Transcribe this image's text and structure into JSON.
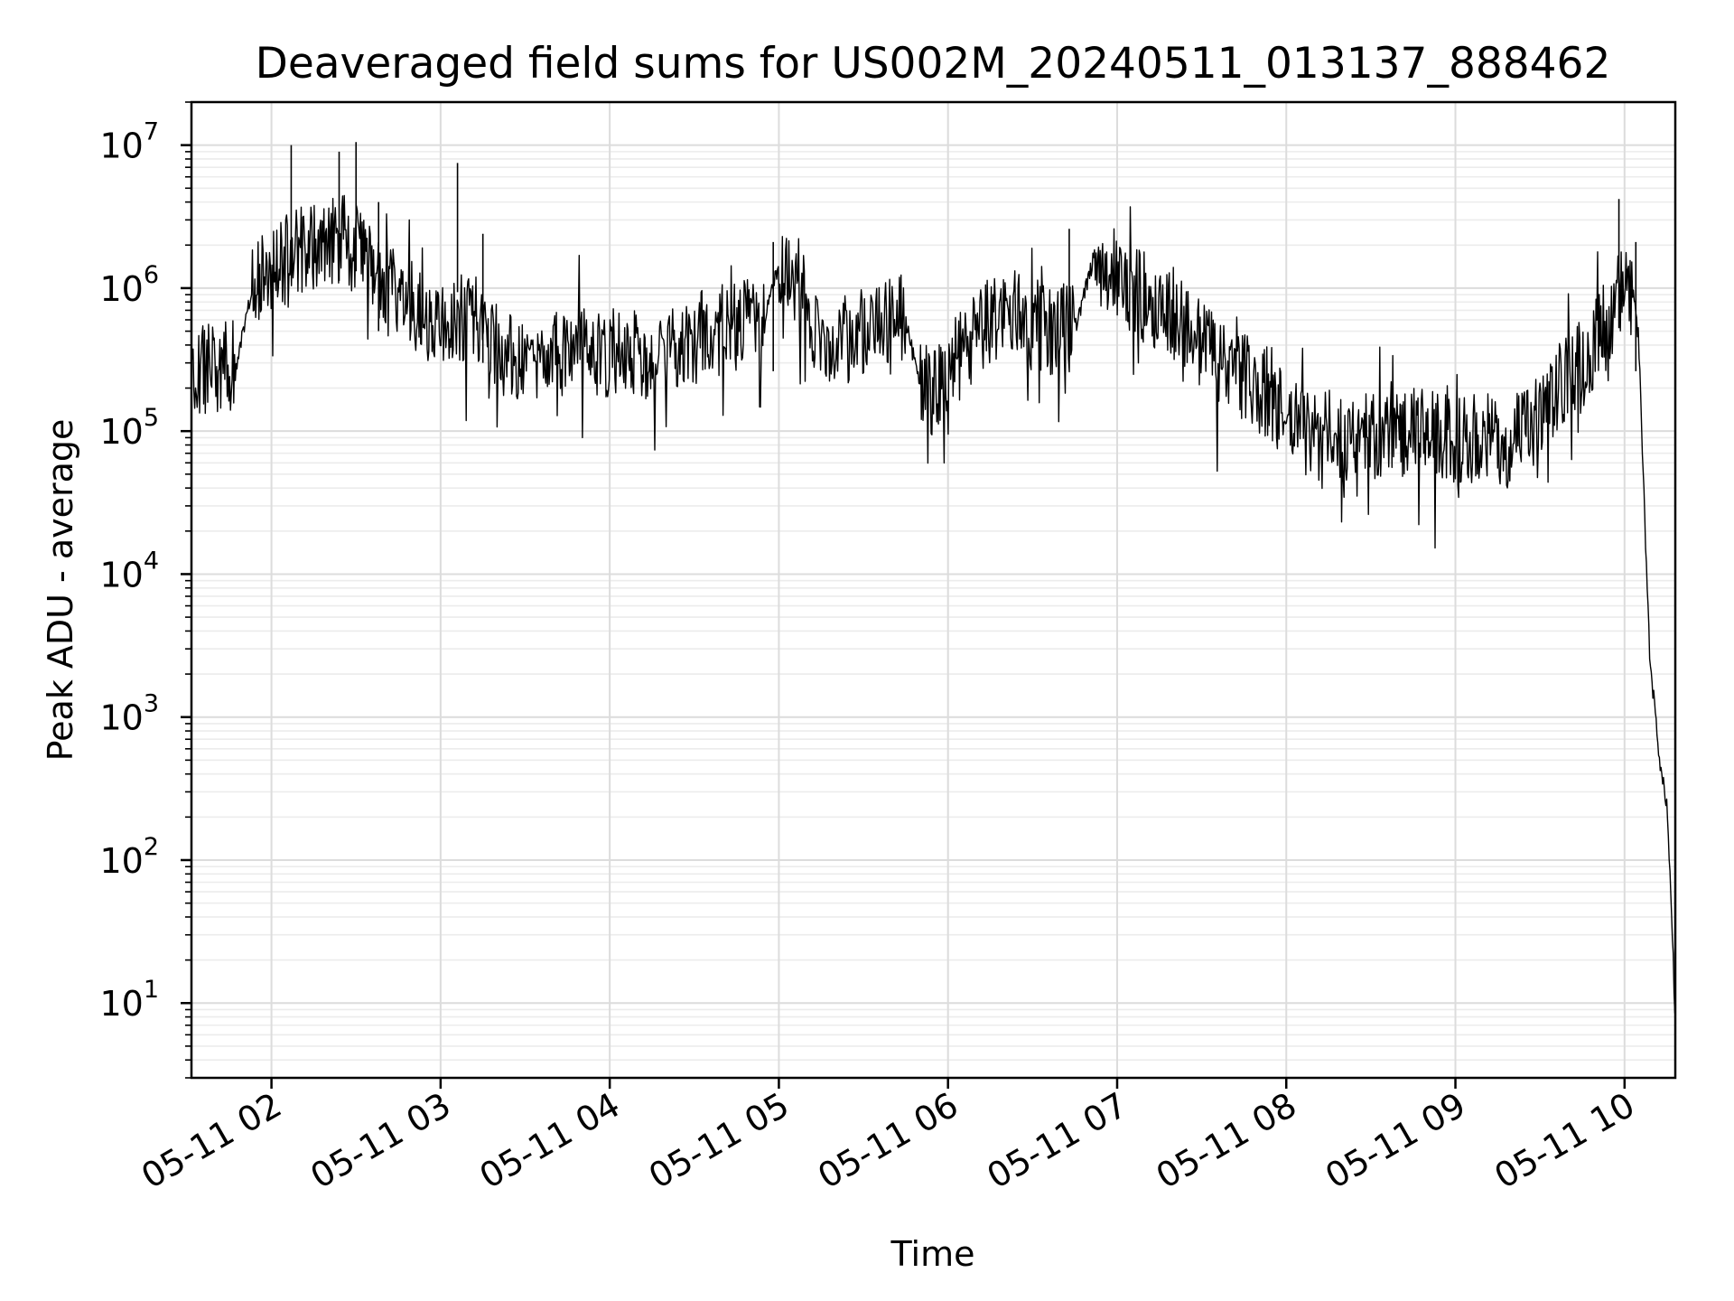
{
  "chart_data": {
    "type": "line",
    "title": "Deaveraged field sums for US002M_20240511_013137_888462",
    "xlabel": "Time",
    "ylabel": "Peak ADU - average",
    "yscale": "log",
    "ylim": [
      3,
      20000000
    ],
    "xlim": [
      "2024-05-11T01:31:37",
      "2024-05-11T10:18:00"
    ],
    "grid": true,
    "line_color": "#000000",
    "x_ticks": [
      {
        "label": "05-11 02",
        "value": "2024-05-11T02:00:00"
      },
      {
        "label": "05-11 03",
        "value": "2024-05-11T03:00:00"
      },
      {
        "label": "05-11 04",
        "value": "2024-05-11T04:00:00"
      },
      {
        "label": "05-11 05",
        "value": "2024-05-11T05:00:00"
      },
      {
        "label": "05-11 06",
        "value": "2024-05-11T06:00:00"
      },
      {
        "label": "05-11 07",
        "value": "2024-05-11T07:00:00"
      },
      {
        "label": "05-11 08",
        "value": "2024-05-11T08:00:00"
      },
      {
        "label": "05-11 09",
        "value": "2024-05-11T09:00:00"
      },
      {
        "label": "05-11 10",
        "value": "2024-05-11T10:00:00"
      }
    ],
    "y_ticks": [
      {
        "base": "10",
        "exp": "1",
        "value": 10
      },
      {
        "base": "10",
        "exp": "2",
        "value": 100
      },
      {
        "base": "10",
        "exp": "3",
        "value": 1000
      },
      {
        "base": "10",
        "exp": "4",
        "value": 10000
      },
      {
        "base": "10",
        "exp": "5",
        "value": 100000
      },
      {
        "base": "10",
        "exp": "6",
        "value": 1000000
      },
      {
        "base": "10",
        "exp": "7",
        "value": 10000000
      }
    ],
    "series": [
      {
        "x": [
          "2024-05-11T01:31:37",
          "2024-05-11T01:40:00",
          "2024-05-11T01:48:00",
          "2024-05-11T01:53:00",
          "2024-05-11T02:00:00",
          "2024-05-11T02:06:00",
          "2024-05-11T02:15:00",
          "2024-05-11T02:25:00",
          "2024-05-11T02:35:00",
          "2024-05-11T02:45:00",
          "2024-05-11T02:55:00",
          "2024-05-11T03:05:00",
          "2024-05-11T03:15:00",
          "2024-05-11T03:25:00",
          "2024-05-11T03:35:00",
          "2024-05-11T03:45:00",
          "2024-05-11T03:55:00",
          "2024-05-11T04:05:00",
          "2024-05-11T04:15:00",
          "2024-05-11T04:25:00",
          "2024-05-11T04:35:00",
          "2024-05-11T04:45:00",
          "2024-05-11T04:55:00",
          "2024-05-11T05:00:00",
          "2024-05-11T05:08:00",
          "2024-05-11T05:15:00",
          "2024-05-11T05:25:00",
          "2024-05-11T05:35:00",
          "2024-05-11T05:45:00",
          "2024-05-11T05:50:00",
          "2024-05-11T05:55:00",
          "2024-05-11T06:05:00",
          "2024-05-11T06:15:00",
          "2024-05-11T06:25:00",
          "2024-05-11T06:35:00",
          "2024-05-11T06:45:00",
          "2024-05-11T06:52:00",
          "2024-05-11T07:00:00",
          "2024-05-11T07:10:00",
          "2024-05-11T07:20:00",
          "2024-05-11T07:30:00",
          "2024-05-11T07:40:00",
          "2024-05-11T07:50:00",
          "2024-05-11T08:00:00",
          "2024-05-11T08:10:00",
          "2024-05-11T08:20:00",
          "2024-05-11T08:30:00",
          "2024-05-11T08:40:00",
          "2024-05-11T08:50:00",
          "2024-05-11T09:00:00",
          "2024-05-11T09:10:00",
          "2024-05-11T09:20:00",
          "2024-05-11T09:30:00",
          "2024-05-11T09:40:00",
          "2024-05-11T09:50:00",
          "2024-05-11T09:58:00",
          "2024-05-11T10:03:00",
          "2024-05-11T10:05:00",
          "2024-05-11T10:07:00",
          "2024-05-11T10:09:00",
          "2024-05-11T10:11:00",
          "2024-05-11T10:13:00",
          "2024-05-11T10:15:00",
          "2024-05-11T10:17:00",
          "2024-05-11T10:18:00"
        ],
        "y": [
          250000,
          280000,
          320000,
          1000000,
          1500000,
          1600000,
          2000000,
          2200000,
          1500000,
          900000,
          600000,
          650000,
          550000,
          320000,
          300000,
          350000,
          320000,
          380000,
          340000,
          400000,
          480000,
          550000,
          620000,
          1500000,
          950000,
          380000,
          450000,
          560000,
          600000,
          200000,
          180000,
          350000,
          600000,
          700000,
          500000,
          520000,
          1700000,
          1100000,
          850000,
          700000,
          400000,
          300000,
          200000,
          120000,
          90000,
          95000,
          90000,
          100000,
          95000,
          85000,
          90000,
          85000,
          120000,
          250000,
          420000,
          900000,
          900000,
          450000,
          30000,
          2500,
          1000,
          400,
          250,
          30,
          6
        ],
        "spikes": [
          {
            "x": "2024-05-11T02:07:00",
            "y": 10000000
          },
          {
            "x": "2024-05-11T02:24:00",
            "y": 9000000
          },
          {
            "x": "2024-05-11T02:30:00",
            "y": 10500000
          },
          {
            "x": "2024-05-11T02:38:00",
            "y": 4000000
          },
          {
            "x": "2024-05-11T03:06:00",
            "y": 7500000
          },
          {
            "x": "2024-05-11T03:15:00",
            "y": 2400000
          },
          {
            "x": "2024-05-11T04:58:00",
            "y": 2100000
          },
          {
            "x": "2024-05-11T06:43:00",
            "y": 2600000
          },
          {
            "x": "2024-05-11T09:58:00",
            "y": 4200000
          },
          {
            "x": "2024-05-11T10:04:00",
            "y": 2100000
          }
        ]
      }
    ]
  }
}
